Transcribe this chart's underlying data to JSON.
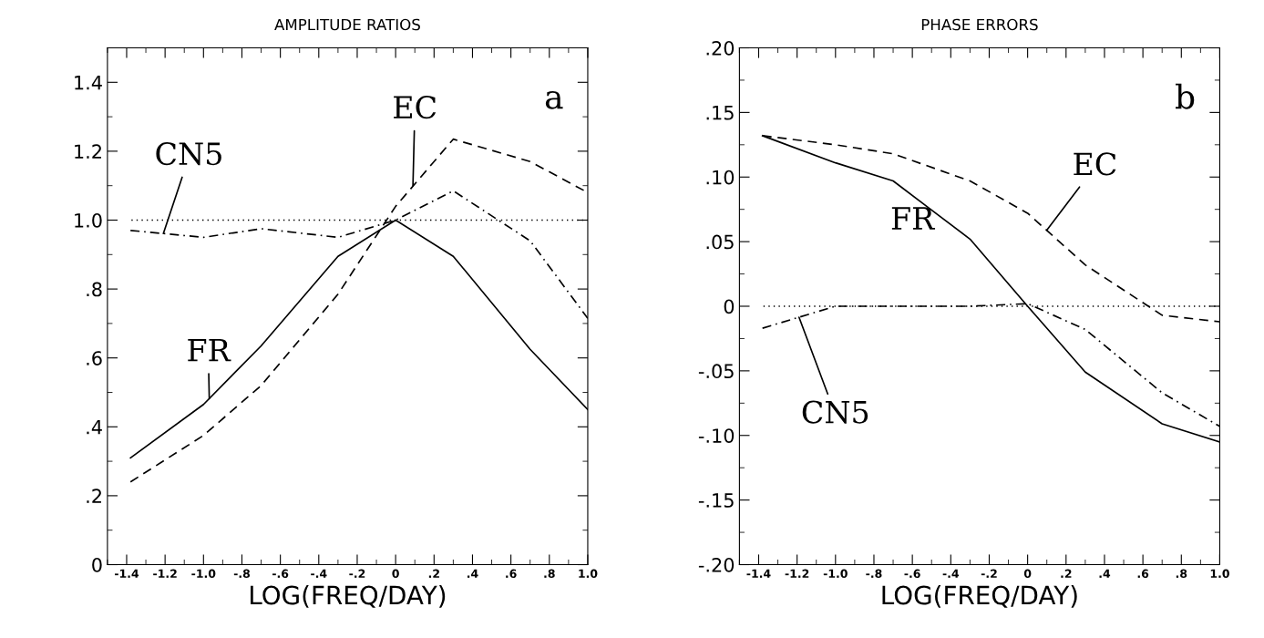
{
  "chart_data": [
    {
      "type": "line",
      "title": "AMPLITUDE RATIOS",
      "xlabel": "LOG(FREQ/DAY)",
      "annotations": [
        "a"
      ],
      "x": [
        -1.38,
        -1.0,
        -0.7,
        -0.3,
        0.0,
        0.3,
        0.7,
        1.0
      ],
      "series": [
        {
          "name": "FR",
          "color": "#000000",
          "line_style": "solid",
          "values": [
            0.31,
            0.465,
            0.635,
            0.895,
            1.0,
            0.895,
            0.625,
            0.45
          ]
        },
        {
          "name": "EC",
          "color": "#000000",
          "line_style": "dashed",
          "values": [
            0.24,
            0.375,
            0.52,
            0.785,
            1.04,
            1.235,
            1.17,
            1.08
          ]
        },
        {
          "name": "CN5",
          "color": "#000000",
          "line_style": "dashdot",
          "values": [
            0.97,
            0.95,
            0.975,
            0.95,
            1.0,
            1.085,
            0.94,
            0.715
          ]
        }
      ],
      "ref_lines": [
        {
          "axis": "y",
          "value": 1.0,
          "color": "#000000",
          "line_style": "dotted"
        }
      ],
      "xlim": [
        -1.5,
        1.0
      ],
      "xticks": [
        {
          "value": -1.4,
          "label": "-1.4"
        },
        {
          "value": -1.2,
          "label": "-1.2"
        },
        {
          "value": -1.0,
          "label": "-1.0"
        },
        {
          "value": -0.8,
          "label": "-.8"
        },
        {
          "value": -0.6,
          "label": "-.6"
        },
        {
          "value": -0.4,
          "label": "-.4"
        },
        {
          "value": -0.2,
          "label": "-.2"
        },
        0,
        {
          "value": 0.2,
          "label": ".2"
        },
        {
          "value": 0.4,
          "label": ".4"
        },
        {
          "value": 0.6,
          "label": ".6"
        },
        {
          "value": 0.8,
          "label": ".8"
        },
        {
          "value": 1.0,
          "label": "1.0"
        }
      ],
      "ylim": [
        0,
        1.5
      ],
      "yticks": [
        0,
        {
          "value": 0.2,
          "label": ".2"
        },
        {
          "value": 0.4,
          "label": ".4"
        },
        {
          "value": 0.6,
          "label": ".6"
        },
        {
          "value": 0.8,
          "label": ".8"
        },
        {
          "value": 1.0,
          "label": "1.0"
        },
        {
          "value": 1.2,
          "label": "1.2"
        },
        {
          "value": 1.4,
          "label": "1.4"
        }
      ],
      "grid": false,
      "legend": false
    },
    {
      "type": "line",
      "title": "PHASE ERRORS",
      "xlabel": "LOG(FREQ/DAY)",
      "annotations": [
        "b"
      ],
      "x": [
        -1.38,
        -1.0,
        -0.7,
        -0.3,
        0.0,
        0.3,
        0.7,
        1.0
      ],
      "series": [
        {
          "name": "FR",
          "color": "#000000",
          "line_style": "solid",
          "values": [
            0.132,
            0.111,
            0.097,
            0.052,
            0.0,
            -0.051,
            -0.091,
            -0.105
          ]
        },
        {
          "name": "EC",
          "color": "#000000",
          "line_style": "dashed",
          "values": [
            0.132,
            0.125,
            0.118,
            0.097,
            0.072,
            0.032,
            -0.007,
            -0.012
          ]
        },
        {
          "name": "CN5",
          "color": "#000000",
          "line_style": "dashdot",
          "values": [
            -0.017,
            0.0,
            0.0,
            0.0,
            0.002,
            -0.018,
            -0.067,
            -0.093
          ]
        }
      ],
      "ref_lines": [
        {
          "axis": "y",
          "value": 0,
          "color": "#000000",
          "line_style": "dotted"
        }
      ],
      "xlim": [
        -1.5,
        1.0
      ],
      "xticks": [
        {
          "value": -1.4,
          "label": "-1.4"
        },
        {
          "value": -1.2,
          "label": "-1.2"
        },
        {
          "value": -1.0,
          "label": "-1.0"
        },
        {
          "value": -0.8,
          "label": "-.8"
        },
        {
          "value": -0.6,
          "label": "-.6"
        },
        {
          "value": -0.4,
          "label": "-.4"
        },
        {
          "value": -0.2,
          "label": "-.2"
        },
        0,
        {
          "value": 0.2,
          "label": ".2"
        },
        {
          "value": 0.4,
          "label": ".4"
        },
        {
          "value": 0.6,
          "label": ".6"
        },
        {
          "value": 0.8,
          "label": ".8"
        },
        {
          "value": 1.0,
          "label": "1.0"
        }
      ],
      "ylim": [
        -0.2,
        0.2
      ],
      "yticks": [
        {
          "value": -0.2,
          "label": "-.20"
        },
        {
          "value": -0.15,
          "label": "-.15"
        },
        {
          "value": -0.1,
          "label": "-.10"
        },
        {
          "value": -0.05,
          "label": "-.05"
        },
        0,
        {
          "value": 0.05,
          "label": ".05"
        },
        {
          "value": 0.1,
          "label": ".10"
        },
        {
          "value": 0.15,
          "label": ".15"
        },
        {
          "value": 0.2,
          "label": ".20"
        }
      ],
      "grid": false,
      "legend": false
    }
  ]
}
